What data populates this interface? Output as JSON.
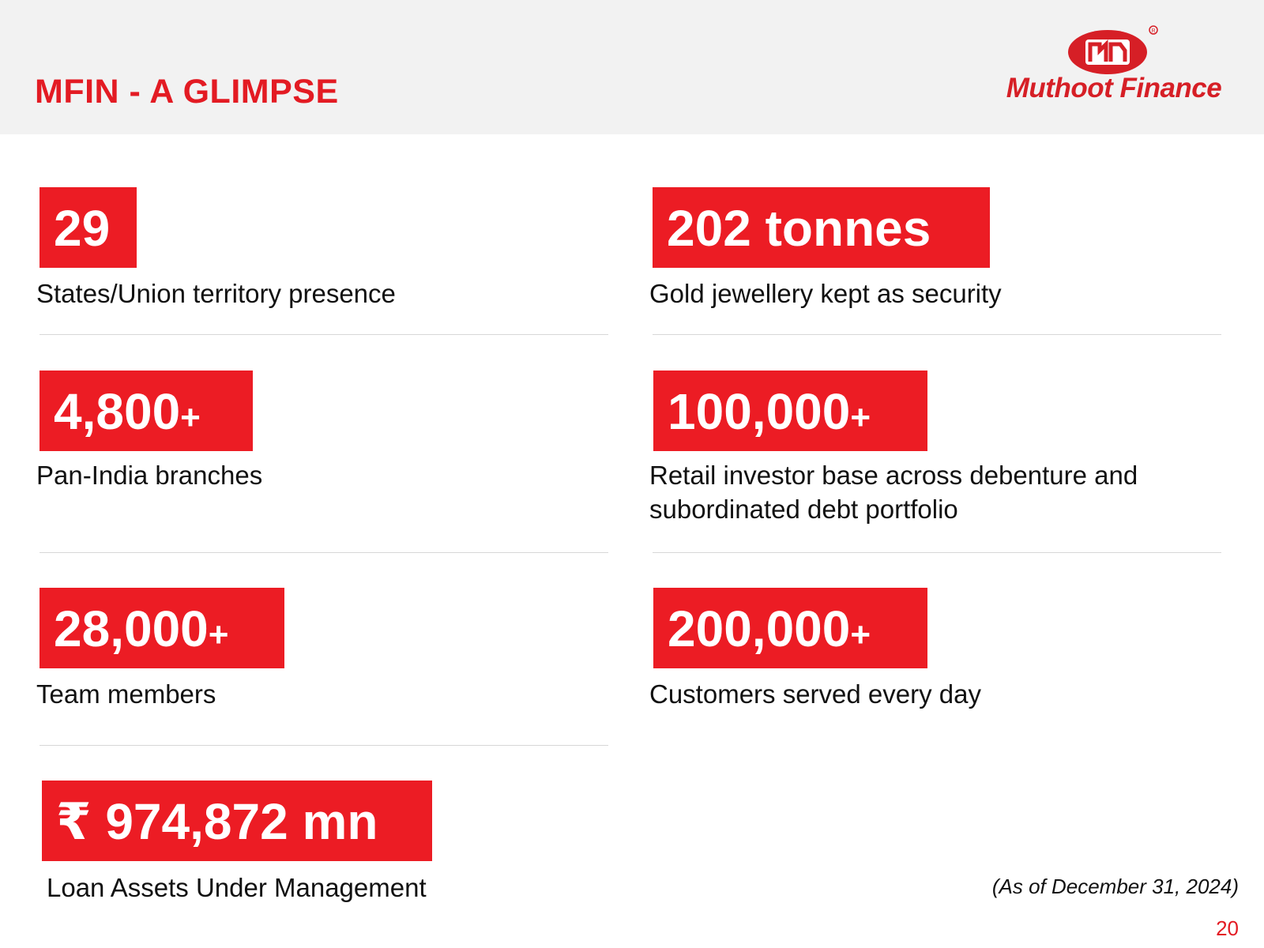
{
  "header": {
    "title": "MFIN - A GLIMPSE",
    "logo_text": "Muthoot Finance",
    "accent_color": "#e31b23"
  },
  "stats": [
    {
      "value": "29",
      "suffix": "",
      "label": "States/Union territory presence"
    },
    {
      "value": "202 tonnes",
      "suffix": "",
      "label": "Gold jewellery kept as security"
    },
    {
      "value": "4,800",
      "suffix": "+",
      "label": "Pan-India branches"
    },
    {
      "value": "100,000",
      "suffix": "+",
      "label_line1": "Retail investor base across debenture and",
      "label_line2": "subordinated debt portfolio"
    },
    {
      "value": "28,000",
      "suffix": "+",
      "label": "Team members"
    },
    {
      "value": "200,000",
      "suffix": "+",
      "label": "Customers served every day"
    },
    {
      "value": "₹ 974,872 mn",
      "suffix": "",
      "label": "Loan Assets Under Management"
    }
  ],
  "footer": {
    "as_of": "(As of December 31, 2024)",
    "page_number": "20"
  }
}
